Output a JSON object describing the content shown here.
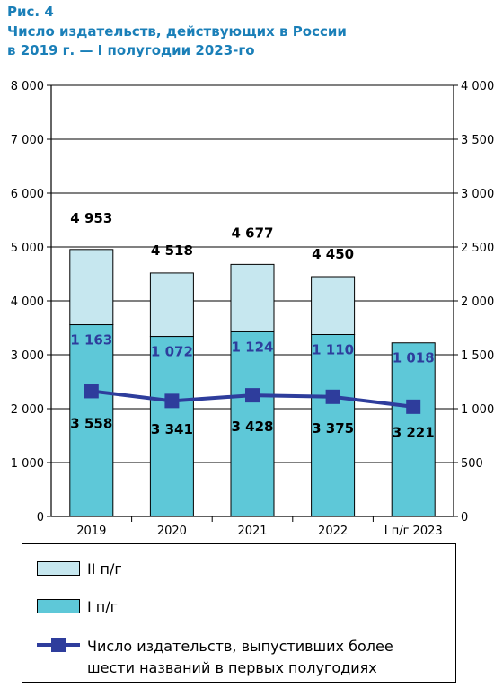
{
  "figure_label": "Рис. 4",
  "title_line1": "Число издательств, действующих в России",
  "title_line2": "в 2019 г. — I полугодии 2023-го",
  "colors": {
    "h2": "#c6e7ef",
    "h1": "#5ec8d8",
    "line": "#2e3d9c",
    "h1_label": "#2e3d9c"
  },
  "legend": {
    "h2": "II п/г",
    "h1": "I п/г",
    "line_line1": "Число издательств, выпустивших более",
    "line_line2": "шести названий в первых полугодиях"
  },
  "chart_data": {
    "type": "bar",
    "stacked": true,
    "categories": [
      "2019",
      "2020",
      "2021",
      "2022",
      "I п/г 2023"
    ],
    "series": [
      {
        "name": "I п/г",
        "values": [
          3558,
          3341,
          3428,
          3375,
          3221
        ],
        "value_labels": [
          "3 558",
          "3 341",
          "3 428",
          "3 375",
          "3 221"
        ]
      },
      {
        "name": "II п/г",
        "values": [
          1395,
          1177,
          1249,
          1075,
          null
        ]
      }
    ],
    "totals": [
      4953,
      4518,
      4677,
      4450,
      null
    ],
    "total_labels": [
      "4 953",
      "4 518",
      "4 677",
      "4 450",
      ""
    ],
    "line_series": {
      "name": "Число издательств, выпустивших более шести названий в первых полугодиях",
      "axis": "right",
      "values": [
        1163,
        1072,
        1124,
        1110,
        1018
      ],
      "value_labels": [
        "1 163",
        "1 072",
        "1 124",
        "1 110",
        "1 018"
      ]
    },
    "left_axis": {
      "ylim": [
        0,
        8000
      ],
      "ticks": [
        "0",
        "1 000",
        "2 000",
        "3 000",
        "4 000",
        "5 000",
        "6 000",
        "7 000",
        "8 000"
      ]
    },
    "right_axis": {
      "ylim": [
        0,
        4000
      ],
      "ticks": [
        "0",
        "500",
        "1 000",
        "1 500",
        "2 000",
        "2 500",
        "3 000",
        "3 500",
        "4 000"
      ]
    },
    "grid": true,
    "legend_position": "bottom"
  }
}
